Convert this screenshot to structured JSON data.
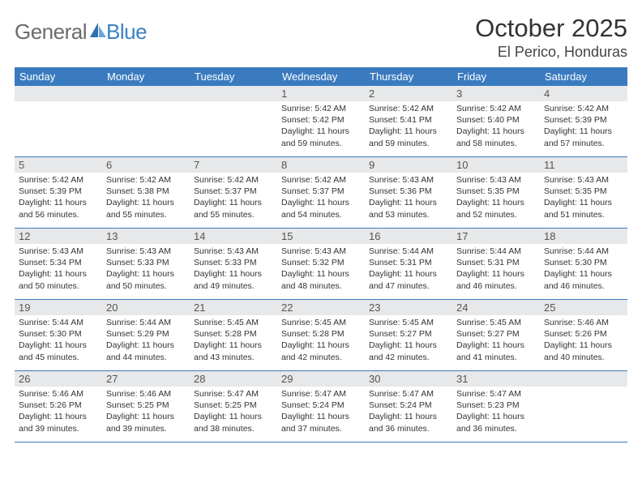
{
  "brand": {
    "general": "General",
    "blue": "Blue"
  },
  "title": "October 2025",
  "location": "El Perico, Honduras",
  "header_bg": "#3a7bbf",
  "daynum_bg": "#e7e8e9",
  "border_color": "#3a7bbf",
  "weekdays": [
    "Sunday",
    "Monday",
    "Tuesday",
    "Wednesday",
    "Thursday",
    "Friday",
    "Saturday"
  ],
  "weeks": [
    [
      {
        "n": "",
        "empty": true
      },
      {
        "n": "",
        "empty": true
      },
      {
        "n": "",
        "empty": true
      },
      {
        "n": "1",
        "sr": "5:42 AM",
        "ss": "5:42 PM",
        "dl": "11 hours and 59 minutes."
      },
      {
        "n": "2",
        "sr": "5:42 AM",
        "ss": "5:41 PM",
        "dl": "11 hours and 59 minutes."
      },
      {
        "n": "3",
        "sr": "5:42 AM",
        "ss": "5:40 PM",
        "dl": "11 hours and 58 minutes."
      },
      {
        "n": "4",
        "sr": "5:42 AM",
        "ss": "5:39 PM",
        "dl": "11 hours and 57 minutes."
      }
    ],
    [
      {
        "n": "5",
        "sr": "5:42 AM",
        "ss": "5:39 PM",
        "dl": "11 hours and 56 minutes."
      },
      {
        "n": "6",
        "sr": "5:42 AM",
        "ss": "5:38 PM",
        "dl": "11 hours and 55 minutes."
      },
      {
        "n": "7",
        "sr": "5:42 AM",
        "ss": "5:37 PM",
        "dl": "11 hours and 55 minutes."
      },
      {
        "n": "8",
        "sr": "5:42 AM",
        "ss": "5:37 PM",
        "dl": "11 hours and 54 minutes."
      },
      {
        "n": "9",
        "sr": "5:43 AM",
        "ss": "5:36 PM",
        "dl": "11 hours and 53 minutes."
      },
      {
        "n": "10",
        "sr": "5:43 AM",
        "ss": "5:35 PM",
        "dl": "11 hours and 52 minutes."
      },
      {
        "n": "11",
        "sr": "5:43 AM",
        "ss": "5:35 PM",
        "dl": "11 hours and 51 minutes."
      }
    ],
    [
      {
        "n": "12",
        "sr": "5:43 AM",
        "ss": "5:34 PM",
        "dl": "11 hours and 50 minutes."
      },
      {
        "n": "13",
        "sr": "5:43 AM",
        "ss": "5:33 PM",
        "dl": "11 hours and 50 minutes."
      },
      {
        "n": "14",
        "sr": "5:43 AM",
        "ss": "5:33 PM",
        "dl": "11 hours and 49 minutes."
      },
      {
        "n": "15",
        "sr": "5:43 AM",
        "ss": "5:32 PM",
        "dl": "11 hours and 48 minutes."
      },
      {
        "n": "16",
        "sr": "5:44 AM",
        "ss": "5:31 PM",
        "dl": "11 hours and 47 minutes."
      },
      {
        "n": "17",
        "sr": "5:44 AM",
        "ss": "5:31 PM",
        "dl": "11 hours and 46 minutes."
      },
      {
        "n": "18",
        "sr": "5:44 AM",
        "ss": "5:30 PM",
        "dl": "11 hours and 46 minutes."
      }
    ],
    [
      {
        "n": "19",
        "sr": "5:44 AM",
        "ss": "5:30 PM",
        "dl": "11 hours and 45 minutes."
      },
      {
        "n": "20",
        "sr": "5:44 AM",
        "ss": "5:29 PM",
        "dl": "11 hours and 44 minutes."
      },
      {
        "n": "21",
        "sr": "5:45 AM",
        "ss": "5:28 PM",
        "dl": "11 hours and 43 minutes."
      },
      {
        "n": "22",
        "sr": "5:45 AM",
        "ss": "5:28 PM",
        "dl": "11 hours and 42 minutes."
      },
      {
        "n": "23",
        "sr": "5:45 AM",
        "ss": "5:27 PM",
        "dl": "11 hours and 42 minutes."
      },
      {
        "n": "24",
        "sr": "5:45 AM",
        "ss": "5:27 PM",
        "dl": "11 hours and 41 minutes."
      },
      {
        "n": "25",
        "sr": "5:46 AM",
        "ss": "5:26 PM",
        "dl": "11 hours and 40 minutes."
      }
    ],
    [
      {
        "n": "26",
        "sr": "5:46 AM",
        "ss": "5:26 PM",
        "dl": "11 hours and 39 minutes."
      },
      {
        "n": "27",
        "sr": "5:46 AM",
        "ss": "5:25 PM",
        "dl": "11 hours and 39 minutes."
      },
      {
        "n": "28",
        "sr": "5:47 AM",
        "ss": "5:25 PM",
        "dl": "11 hours and 38 minutes."
      },
      {
        "n": "29",
        "sr": "5:47 AM",
        "ss": "5:24 PM",
        "dl": "11 hours and 37 minutes."
      },
      {
        "n": "30",
        "sr": "5:47 AM",
        "ss": "5:24 PM",
        "dl": "11 hours and 36 minutes."
      },
      {
        "n": "31",
        "sr": "5:47 AM",
        "ss": "5:23 PM",
        "dl": "11 hours and 36 minutes."
      },
      {
        "n": "",
        "empty": true
      }
    ]
  ],
  "labels": {
    "sunrise": "Sunrise:",
    "sunset": "Sunset:",
    "daylight": "Daylight:"
  }
}
